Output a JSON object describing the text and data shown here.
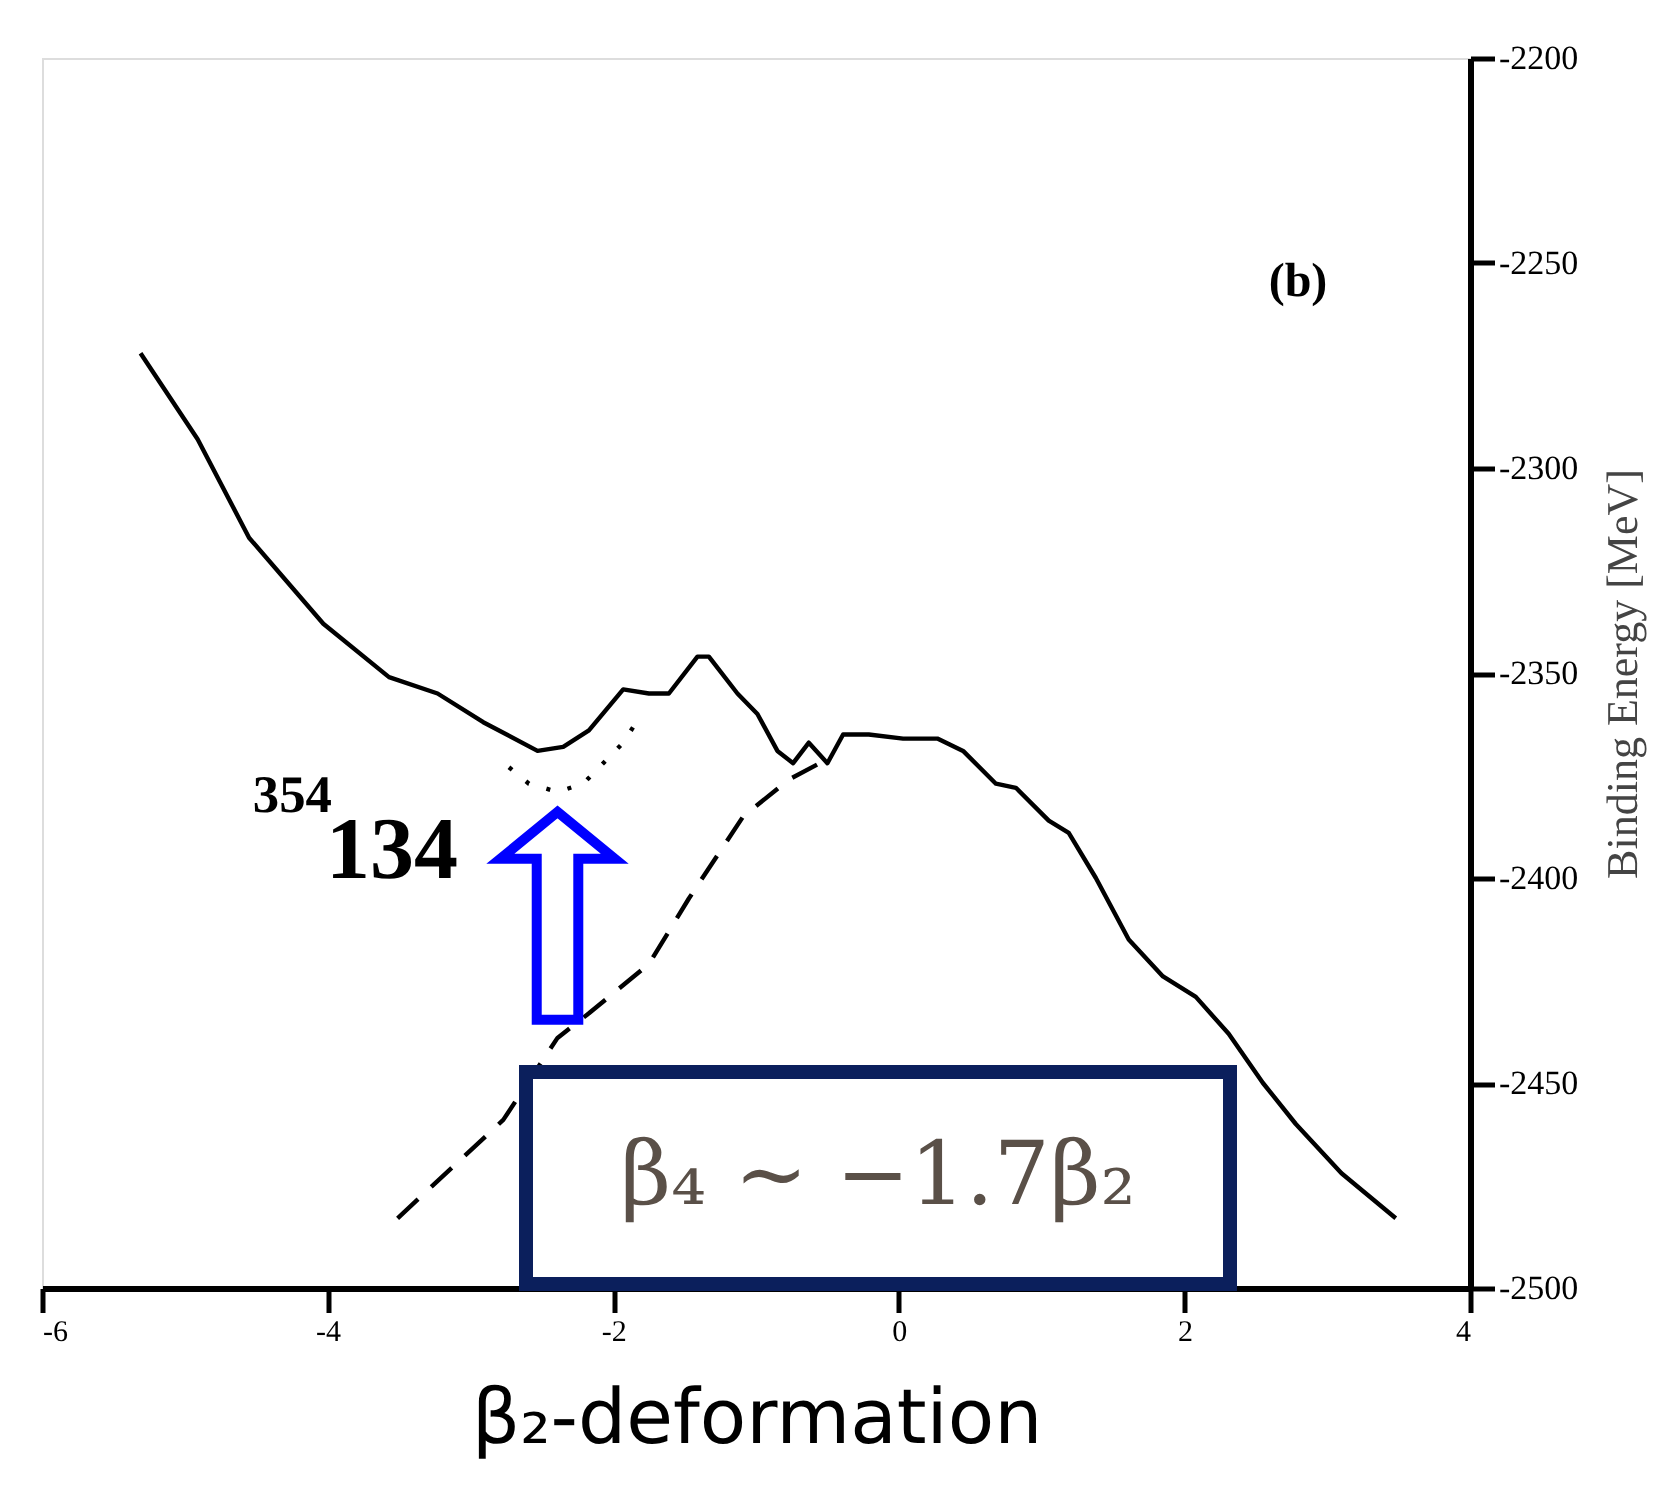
{
  "chart_data": {
    "type": "line",
    "xlabel": "β₂-deformation",
    "ylabel": "Binding Energy  [MeV]",
    "xlim": [
      -6,
      4
    ],
    "xticks": [
      -6,
      -4,
      -2,
      0,
      2,
      4
    ],
    "ylim": [
      -2500,
      -2200
    ],
    "yticks": [
      -2500,
      -2450,
      -2400,
      -2350,
      -2300,
      -2250,
      -2200
    ],
    "grid": false,
    "tick_labels": "xy",
    "annotations": [
      "(b)",
      "$^{354}$134",
      "β₄ ∼ −1.7β₂"
    ],
    "series": [
      {
        "color": "#000000",
        "line_style": "solid",
        "x": [
          -5.31,
          -4.91,
          -4.55,
          -4.03,
          -3.57,
          -3.23,
          -2.91,
          -2.53,
          -2.35,
          -2.17,
          -1.93,
          -1.75,
          -1.61,
          -1.41,
          -1.33,
          -1.13,
          -0.99,
          -0.85,
          -0.74,
          -0.63,
          -0.5,
          -0.39,
          -0.21,
          0.03,
          0.27,
          0.45,
          0.68,
          0.82,
          1.05,
          1.19,
          1.38,
          1.61,
          1.85,
          2.08,
          2.31,
          2.55,
          2.78,
          3.1,
          3.48
        ],
        "values": [
          -2272,
          -2293,
          -2317,
          -2338,
          -2351,
          -2355,
          -2362,
          -2369,
          -2368,
          -2364,
          -2354,
          -2355,
          -2355,
          -2346,
          -2346,
          -2355,
          -2360,
          -2369,
          -2372,
          -2367,
          -2372,
          -2365,
          -2365,
          -2366,
          -2366,
          -2369,
          -2377,
          -2378,
          -2386,
          -2389,
          -2400,
          -2415,
          -2424,
          -2429,
          -2438,
          -2450,
          -2460,
          -2472,
          -2483
        ]
      },
      {
        "color": "#000000",
        "line_style": "dotted",
        "x": [
          -2.73,
          -2.59,
          -2.39,
          -2.21,
          -2.07,
          -1.93,
          -1.82
        ],
        "values": [
          -2373,
          -2377,
          -2379,
          -2377,
          -2372,
          -2367,
          -2361
        ]
      },
      {
        "color": "#000000",
        "line_style": "dashed",
        "x": [
          -3.51,
          -2.77,
          -2.39,
          -2.17,
          -1.75,
          -1.47,
          -1.09,
          -0.77,
          -0.5
        ],
        "values": [
          -2483,
          -2459,
          -2439,
          -2433,
          -2421,
          -2405,
          -2385,
          -2376,
          -2371
        ]
      }
    ]
  }
}
